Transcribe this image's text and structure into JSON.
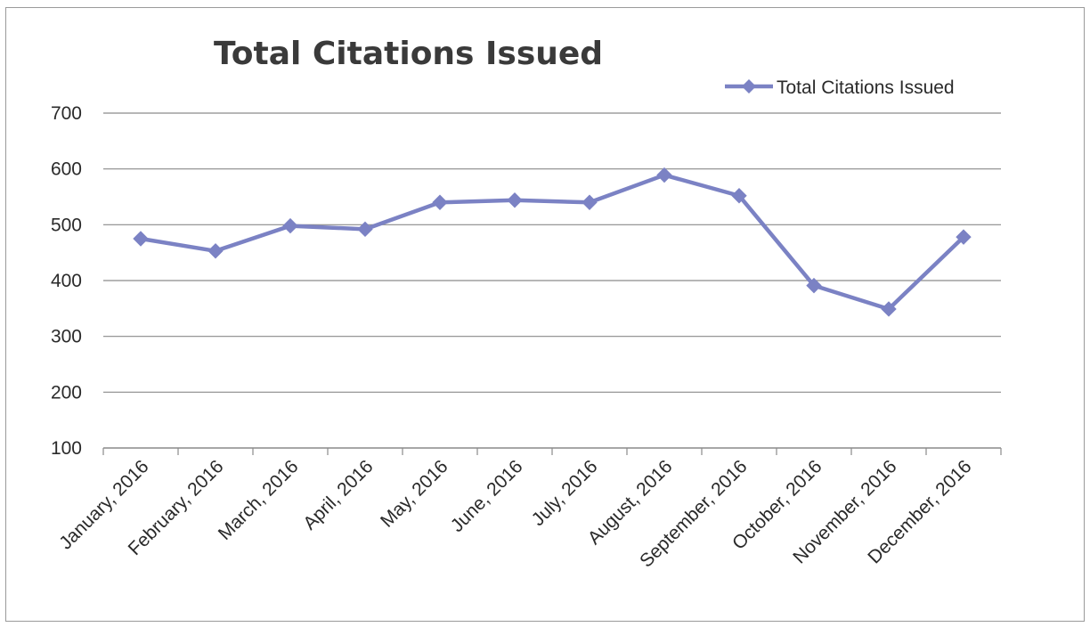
{
  "colors": {
    "series": "#7b82c4",
    "grid": "#8a8a8a"
  },
  "chart_data": {
    "type": "line",
    "title": "Total Citations Issued",
    "xlabel": "",
    "ylabel": "",
    "ylim": [
      100,
      700
    ],
    "yticks": [
      100,
      200,
      300,
      400,
      500,
      600,
      700
    ],
    "grid": true,
    "legend_position": "top-right",
    "categories": [
      "January, 2016",
      "February, 2016",
      "March, 2016",
      "April, 2016",
      "May, 2016",
      "June, 2016",
      "July, 2016",
      "August, 2016",
      "September, 2016",
      "October, 2016",
      "November, 2016",
      "December, 2016"
    ],
    "series": [
      {
        "name": "Total Citations Issued",
        "marker": "diamond",
        "values": [
          475,
          453,
          498,
          492,
          540,
          544,
          540,
          589,
          552,
          391,
          349,
          478
        ]
      }
    ]
  }
}
